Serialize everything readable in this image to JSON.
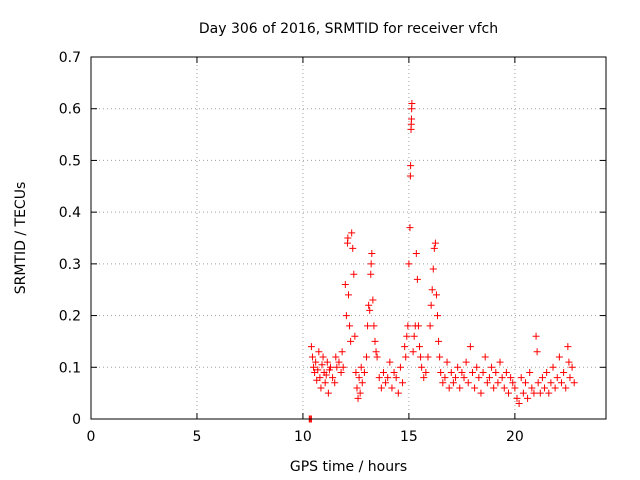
{
  "chart_data": {
    "type": "scatter",
    "title": "Day 306 of 2016, SRMTID for receiver vfch",
    "xlabel": "GPS time / hours",
    "ylabel": "SRMTID / TECUs",
    "xlim": [
      0,
      24.3
    ],
    "ylim": [
      0,
      0.7
    ],
    "xticks": [
      0,
      5,
      10,
      15,
      20
    ],
    "xtick_labels": [
      "0",
      "5",
      "10",
      "15",
      "20"
    ],
    "yticks": [
      0,
      0.1,
      0.2,
      0.3,
      0.4,
      0.5,
      0.6,
      0.7
    ],
    "ytick_labels": [
      "0",
      "0.1",
      "0.2",
      "0.3",
      "0.4",
      "0.5",
      "0.6",
      "0.7"
    ],
    "grid": true,
    "marker": "plus",
    "color": "#ff0000",
    "series": [
      {
        "name": "SRMTID",
        "points": [
          [
            10.3,
            0.0
          ],
          [
            10.32,
            0.0
          ],
          [
            10.35,
            0.0
          ],
          [
            10.4,
            0.0
          ],
          [
            10.4,
            0.14
          ],
          [
            10.45,
            0.12
          ],
          [
            10.5,
            0.1
          ],
          [
            10.55,
            0.09
          ],
          [
            10.6,
            0.11
          ],
          [
            10.65,
            0.075
          ],
          [
            10.7,
            0.095
          ],
          [
            10.75,
            0.13
          ],
          [
            10.8,
            0.08
          ],
          [
            10.85,
            0.06
          ],
          [
            10.9,
            0.105
          ],
          [
            10.95,
            0.12
          ],
          [
            11.0,
            0.09
          ],
          [
            11.05,
            0.07
          ],
          [
            11.1,
            0.085
          ],
          [
            11.15,
            0.11
          ],
          [
            11.2,
            0.05
          ],
          [
            11.25,
            0.095
          ],
          [
            11.3,
            0.1
          ],
          [
            11.4,
            0.08
          ],
          [
            11.5,
            0.07
          ],
          [
            11.55,
            0.12
          ],
          [
            11.6,
            0.1
          ],
          [
            11.7,
            0.11
          ],
          [
            11.8,
            0.09
          ],
          [
            11.85,
            0.13
          ],
          [
            11.9,
            0.1
          ],
          [
            12.0,
            0.26
          ],
          [
            12.05,
            0.2
          ],
          [
            12.1,
            0.34
          ],
          [
            12.12,
            0.35
          ],
          [
            12.15,
            0.24
          ],
          [
            12.2,
            0.18
          ],
          [
            12.25,
            0.15
          ],
          [
            12.3,
            0.36
          ],
          [
            12.35,
            0.33
          ],
          [
            12.4,
            0.28
          ],
          [
            12.45,
            0.16
          ],
          [
            12.5,
            0.09
          ],
          [
            12.55,
            0.06
          ],
          [
            12.6,
            0.04
          ],
          [
            12.65,
            0.08
          ],
          [
            12.7,
            0.05
          ],
          [
            12.75,
            0.1
          ],
          [
            12.8,
            0.07
          ],
          [
            12.9,
            0.09
          ],
          [
            13.0,
            0.12
          ],
          [
            13.05,
            0.18
          ],
          [
            13.1,
            0.22
          ],
          [
            13.15,
            0.21
          ],
          [
            13.2,
            0.28
          ],
          [
            13.22,
            0.3
          ],
          [
            13.25,
            0.32
          ],
          [
            13.3,
            0.23
          ],
          [
            13.35,
            0.18
          ],
          [
            13.4,
            0.15
          ],
          [
            13.45,
            0.13
          ],
          [
            13.5,
            0.12
          ],
          [
            13.6,
            0.08
          ],
          [
            13.7,
            0.06
          ],
          [
            13.8,
            0.09
          ],
          [
            13.9,
            0.07
          ],
          [
            14.0,
            0.08
          ],
          [
            14.1,
            0.11
          ],
          [
            14.2,
            0.06
          ],
          [
            14.3,
            0.09
          ],
          [
            14.4,
            0.08
          ],
          [
            14.5,
            0.05
          ],
          [
            14.6,
            0.1
          ],
          [
            14.7,
            0.07
          ],
          [
            14.8,
            0.14
          ],
          [
            14.85,
            0.12
          ],
          [
            14.9,
            0.16
          ],
          [
            14.95,
            0.18
          ],
          [
            15.0,
            0.3
          ],
          [
            15.05,
            0.37
          ],
          [
            15.07,
            0.47
          ],
          [
            15.08,
            0.49
          ],
          [
            15.1,
            0.56
          ],
          [
            15.11,
            0.57
          ],
          [
            15.12,
            0.58
          ],
          [
            15.13,
            0.6
          ],
          [
            15.14,
            0.61
          ],
          [
            15.2,
            0.13
          ],
          [
            15.25,
            0.16
          ],
          [
            15.3,
            0.18
          ],
          [
            15.35,
            0.32
          ],
          [
            15.4,
            0.27
          ],
          [
            15.45,
            0.18
          ],
          [
            15.5,
            0.14
          ],
          [
            15.55,
            0.12
          ],
          [
            15.6,
            0.1
          ],
          [
            15.7,
            0.08
          ],
          [
            15.8,
            0.09
          ],
          [
            15.9,
            0.12
          ],
          [
            16.0,
            0.18
          ],
          [
            16.05,
            0.22
          ],
          [
            16.1,
            0.25
          ],
          [
            16.15,
            0.29
          ],
          [
            16.2,
            0.33
          ],
          [
            16.25,
            0.34
          ],
          [
            16.3,
            0.24
          ],
          [
            16.35,
            0.2
          ],
          [
            16.4,
            0.15
          ],
          [
            16.45,
            0.12
          ],
          [
            16.5,
            0.09
          ],
          [
            16.6,
            0.07
          ],
          [
            16.7,
            0.08
          ],
          [
            16.8,
            0.11
          ],
          [
            16.9,
            0.06
          ],
          [
            17.0,
            0.09
          ],
          [
            17.1,
            0.07
          ],
          [
            17.2,
            0.08
          ],
          [
            17.3,
            0.1
          ],
          [
            17.4,
            0.06
          ],
          [
            17.5,
            0.09
          ],
          [
            17.6,
            0.08
          ],
          [
            17.7,
            0.11
          ],
          [
            17.8,
            0.07
          ],
          [
            17.9,
            0.14
          ],
          [
            18.0,
            0.09
          ],
          [
            18.1,
            0.06
          ],
          [
            18.2,
            0.1
          ],
          [
            18.3,
            0.08
          ],
          [
            18.4,
            0.05
          ],
          [
            18.5,
            0.09
          ],
          [
            18.6,
            0.12
          ],
          [
            18.7,
            0.07
          ],
          [
            18.8,
            0.08
          ],
          [
            18.9,
            0.1
          ],
          [
            19.0,
            0.06
          ],
          [
            19.1,
            0.09
          ],
          [
            19.2,
            0.07
          ],
          [
            19.3,
            0.11
          ],
          [
            19.4,
            0.08
          ],
          [
            19.5,
            0.06
          ],
          [
            19.6,
            0.09
          ],
          [
            19.7,
            0.05
          ],
          [
            19.8,
            0.08
          ],
          [
            19.9,
            0.07
          ],
          [
            20.0,
            0.06
          ],
          [
            20.1,
            0.04
          ],
          [
            20.2,
            0.03
          ],
          [
            20.3,
            0.08
          ],
          [
            20.4,
            0.05
          ],
          [
            20.5,
            0.07
          ],
          [
            20.6,
            0.04
          ],
          [
            20.7,
            0.09
          ],
          [
            20.8,
            0.06
          ],
          [
            20.9,
            0.05
          ],
          [
            21.0,
            0.16
          ],
          [
            21.05,
            0.13
          ],
          [
            21.1,
            0.07
          ],
          [
            21.2,
            0.05
          ],
          [
            21.3,
            0.08
          ],
          [
            21.4,
            0.06
          ],
          [
            21.5,
            0.09
          ],
          [
            21.6,
            0.05
          ],
          [
            21.7,
            0.07
          ],
          [
            21.8,
            0.1
          ],
          [
            21.9,
            0.06
          ],
          [
            22.0,
            0.08
          ],
          [
            22.1,
            0.12
          ],
          [
            22.2,
            0.07
          ],
          [
            22.3,
            0.09
          ],
          [
            22.4,
            0.06
          ],
          [
            22.5,
            0.14
          ],
          [
            22.55,
            0.11
          ],
          [
            22.6,
            0.08
          ],
          [
            22.7,
            0.1
          ],
          [
            22.8,
            0.07
          ]
        ]
      }
    ]
  }
}
